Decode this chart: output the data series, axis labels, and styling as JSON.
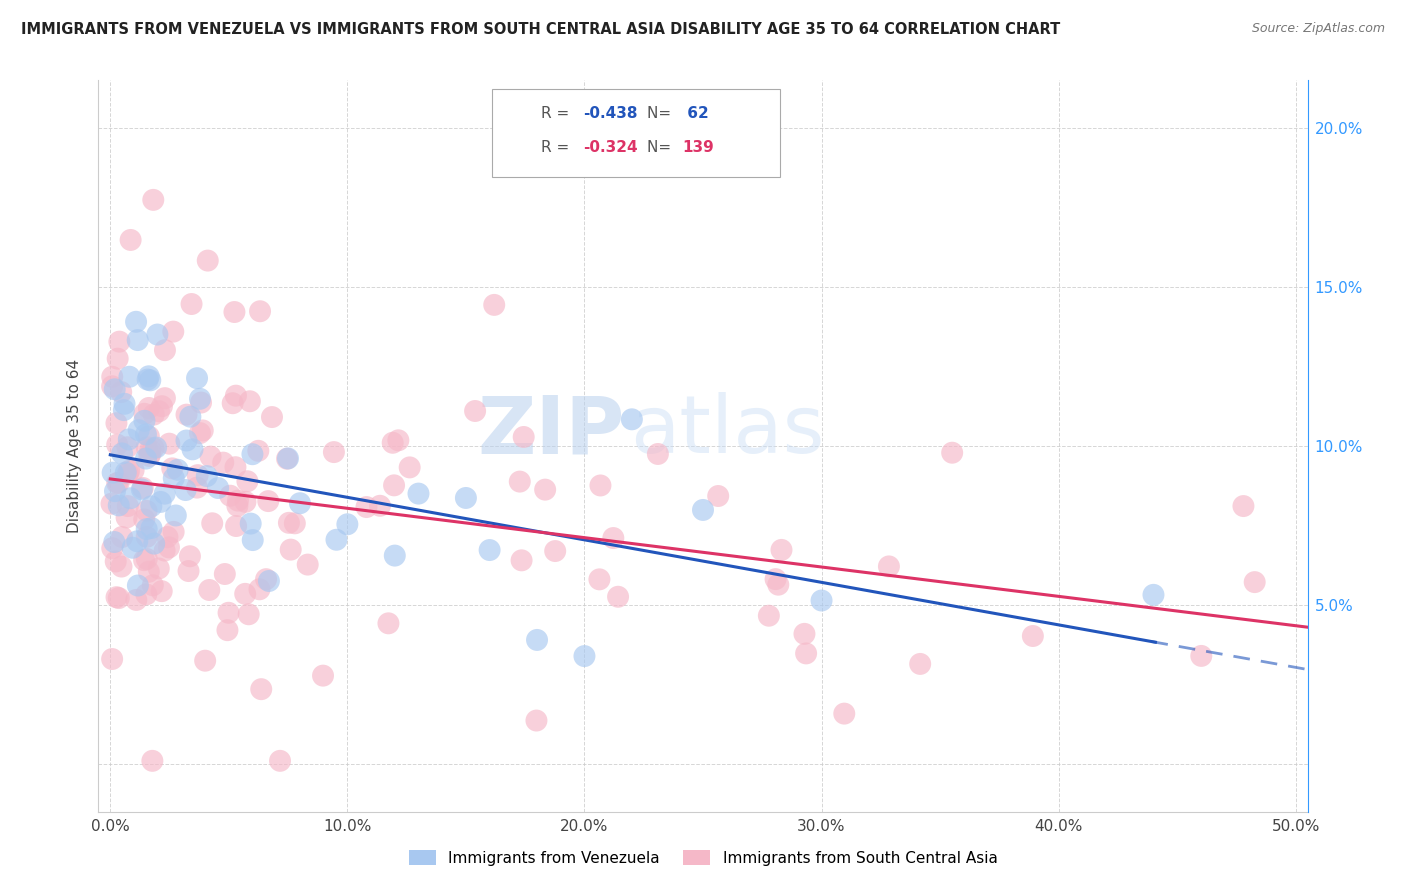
{
  "title": "IMMIGRANTS FROM VENEZUELA VS IMMIGRANTS FROM SOUTH CENTRAL ASIA DISABILITY AGE 35 TO 64 CORRELATION CHART",
  "source": "Source: ZipAtlas.com",
  "ylabel": "Disability Age 35 to 64",
  "r_venezuela": -0.438,
  "n_venezuela": 62,
  "r_south_central_asia": -0.324,
  "n_south_central_asia": 139,
  "color_venezuela": "#a8c8f0",
  "color_south_central_asia": "#f5b8c8",
  "line_color_venezuela": "#2255bb",
  "line_color_south_central_asia": "#dd3366",
  "watermark_zip": "ZIP",
  "watermark_atlas": "atlas",
  "xlim": [
    -0.005,
    0.505
  ],
  "ylim": [
    -0.015,
    0.215
  ],
  "xticks": [
    0.0,
    0.1,
    0.2,
    0.3,
    0.4,
    0.5
  ],
  "xticklabels": [
    "0.0%",
    "10.0%",
    "20.0%",
    "30.0%",
    "40.0%",
    "50.0%"
  ],
  "yticks_right": [
    0.05,
    0.1,
    0.15,
    0.2
  ],
  "yticklabels_right": [
    "5.0%",
    "10.0%",
    "15.0%",
    "20.0%"
  ]
}
